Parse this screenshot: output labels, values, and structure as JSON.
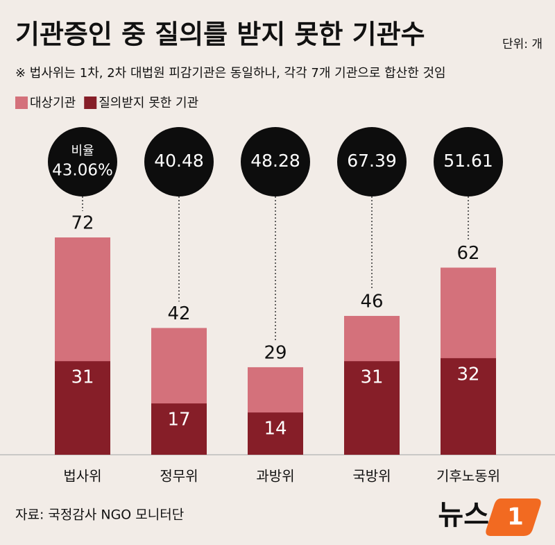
{
  "chart_data": {
    "type": "bar",
    "title": "기관증인 중 질의를 받지 못한 기관수",
    "unit": "단위: 개",
    "note": "※ 법사위는 1차, 2차 대법원 피감기관은 동일하나, 각각 7개 기관으로 합산한 것임",
    "categories": [
      "법사위",
      "정무위",
      "과방위",
      "국방위",
      "기후노동위"
    ],
    "series": [
      {
        "name": "대상기관",
        "color": "#d4717b",
        "values": [
          72,
          42,
          29,
          46,
          62
        ]
      },
      {
        "name": "질의받지 못한 기관",
        "color": "#861e28",
        "values": [
          31,
          17,
          14,
          31,
          32
        ]
      }
    ],
    "ratio": {
      "label": "비율",
      "values": [
        43.06,
        40.48,
        48.28,
        67.39,
        51.61
      ],
      "value_labels": [
        "43.06%",
        "40.48",
        "48.28",
        "67.39",
        "51.61"
      ]
    },
    "ylim": [
      0,
      72
    ],
    "source": "자료: 국정감사 NGO 모니터단",
    "logo": {
      "text": "뉴스",
      "mark": "1"
    }
  }
}
